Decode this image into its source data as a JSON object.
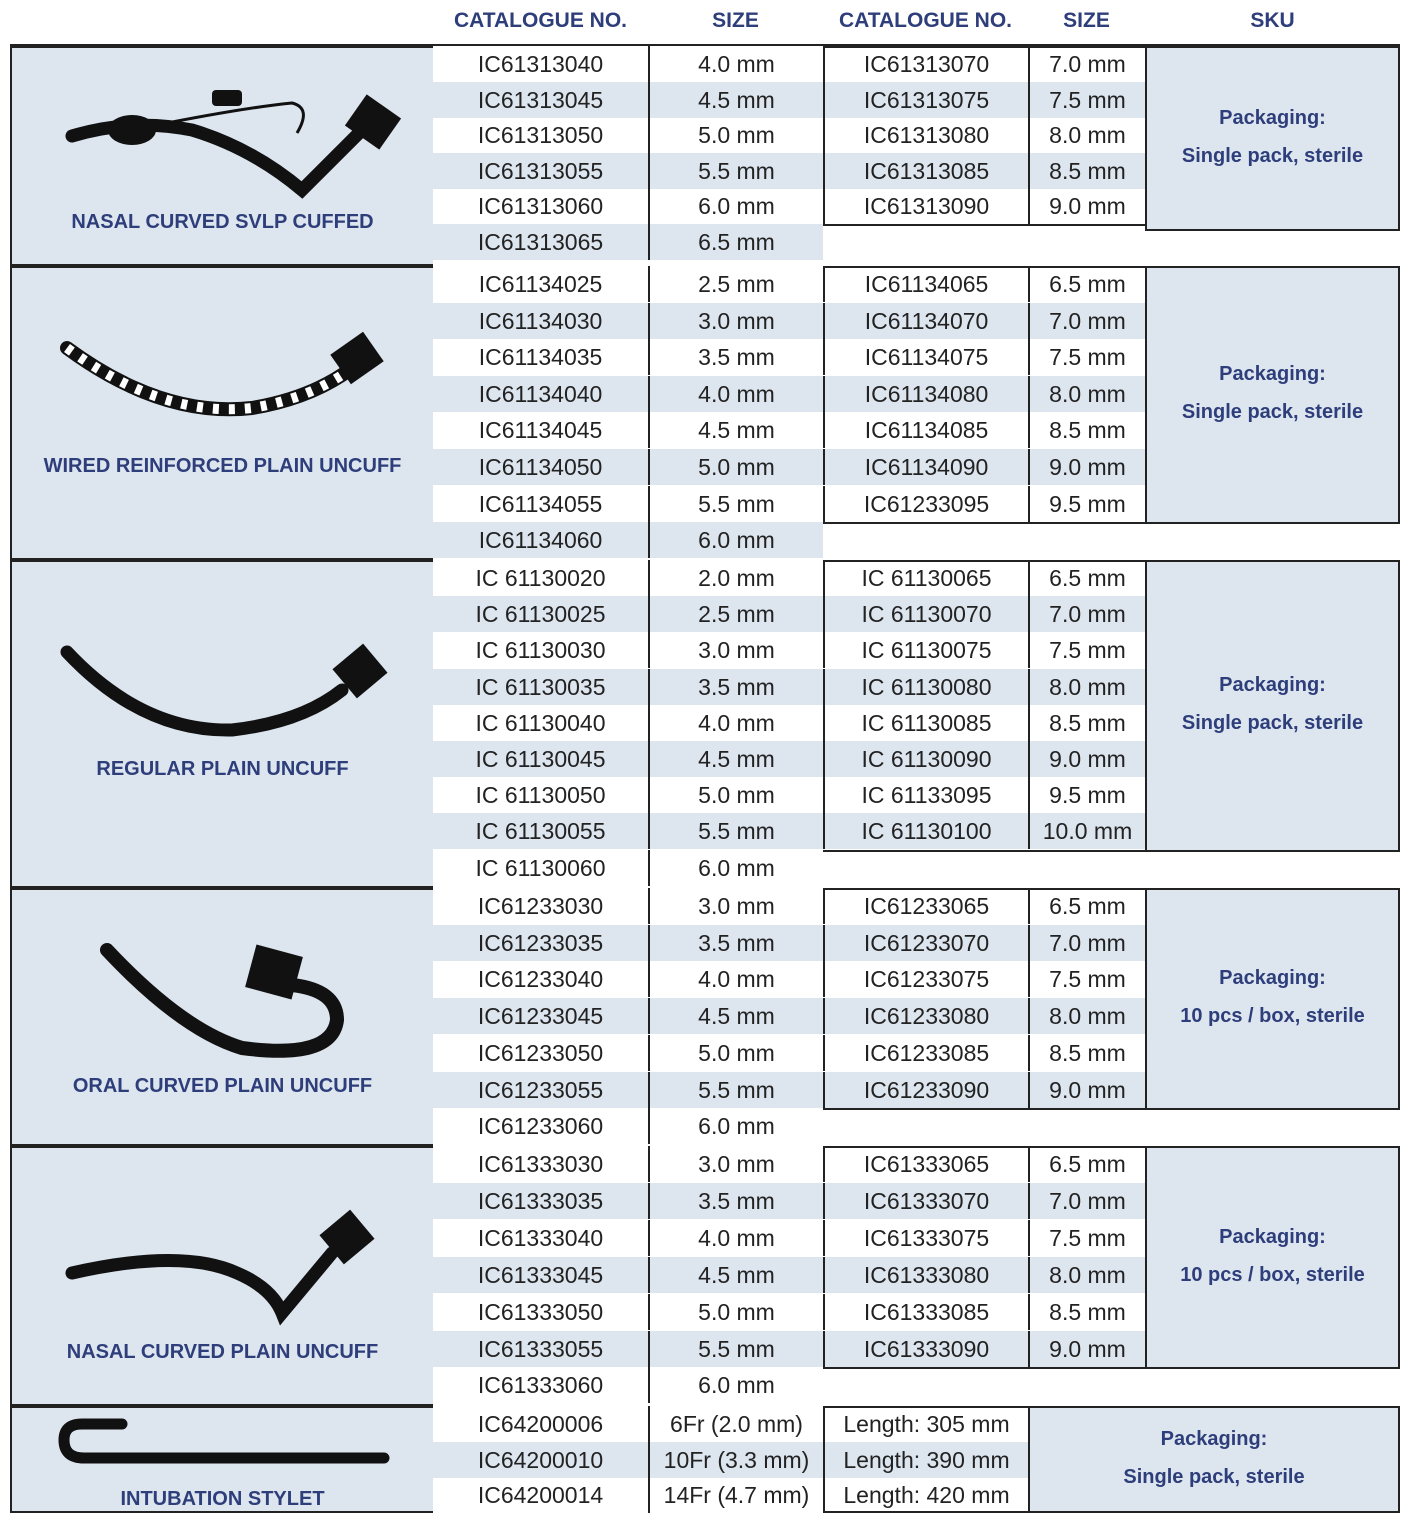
{
  "headers": {
    "catalogue_no_1": "CATALOGUE NO.",
    "size_1": "SIZE",
    "catalogue_no_2": "CATALOGUE NO.",
    "size_2": "SIZE",
    "sku": "SKU"
  },
  "sections": [
    {
      "name": "NASAL CURVED SVLP CUFFED",
      "icon": "nasal-cuffed-tube-icon",
      "left_rows": [
        [
          "IC61313040",
          "4.0 mm"
        ],
        [
          "IC61313045",
          "4.5 mm"
        ],
        [
          "IC61313050",
          "5.0 mm"
        ],
        [
          "IC61313055",
          "5.5 mm"
        ],
        [
          "IC61313060",
          "6.0 mm"
        ],
        [
          "IC61313065",
          "6.5 mm"
        ]
      ],
      "right_rows": [
        [
          "IC61313070",
          "7.0 mm"
        ],
        [
          "IC61313075",
          "7.5 mm"
        ],
        [
          "IC61313080",
          "8.0 mm"
        ],
        [
          "IC61313085",
          "8.5 mm"
        ],
        [
          "IC61313090",
          "9.0 mm"
        ]
      ],
      "packaging_label": "Packaging:",
      "packaging_value": "Single pack, sterile"
    },
    {
      "name": "WIRED REINFORCED PLAIN UNCUFF",
      "icon": "wired-tube-icon",
      "left_rows": [
        [
          "IC61134025",
          "2.5 mm"
        ],
        [
          "IC61134030",
          "3.0 mm"
        ],
        [
          "IC61134035",
          "3.5 mm"
        ],
        [
          "IC61134040",
          "4.0 mm"
        ],
        [
          "IC61134045",
          "4.5 mm"
        ],
        [
          "IC61134050",
          "5.0 mm"
        ],
        [
          "IC61134055",
          "5.5 mm"
        ],
        [
          "IC61134060",
          "6.0 mm"
        ]
      ],
      "right_rows": [
        [
          "IC61134065",
          "6.5 mm"
        ],
        [
          "IC61134070",
          "7.0 mm"
        ],
        [
          "IC61134075",
          "7.5 mm"
        ],
        [
          "IC61134080",
          "8.0 mm"
        ],
        [
          "IC61134085",
          "8.5 mm"
        ],
        [
          "IC61134090",
          "9.0 mm"
        ],
        [
          "IC61233095",
          "9.5 mm"
        ]
      ],
      "packaging_label": "Packaging:",
      "packaging_value": "Single pack, sterile"
    },
    {
      "name": "REGULAR PLAIN UNCUFF",
      "icon": "regular-tube-icon",
      "left_rows": [
        [
          "IC 61130020",
          "2.0 mm"
        ],
        [
          "IC 61130025",
          "2.5 mm"
        ],
        [
          "IC 61130030",
          "3.0 mm"
        ],
        [
          "IC 61130035",
          "3.5 mm"
        ],
        [
          "IC 61130040",
          "4.0 mm"
        ],
        [
          "IC 61130045",
          "4.5 mm"
        ],
        [
          "IC 61130050",
          "5.0 mm"
        ],
        [
          "IC 61130055",
          "5.5 mm"
        ],
        [
          "IC 61130060",
          "6.0 mm"
        ]
      ],
      "right_rows": [
        [
          "IC 61130065",
          "6.5 mm"
        ],
        [
          "IC 61130070",
          "7.0 mm"
        ],
        [
          "IC 61130075",
          "7.5 mm"
        ],
        [
          "IC 61130080",
          "8.0 mm"
        ],
        [
          "IC 61130085",
          "8.5 mm"
        ],
        [
          "IC 61130090",
          "9.0 mm"
        ],
        [
          "IC 61133095",
          "9.5 mm"
        ],
        [
          "IC 61130100",
          "10.0 mm"
        ]
      ],
      "packaging_label": "Packaging:",
      "packaging_value": "Single pack, sterile"
    },
    {
      "name": "ORAL CURVED PLAIN UNCUFF",
      "icon": "oral-tube-icon",
      "left_rows": [
        [
          "IC61233030",
          "3.0 mm"
        ],
        [
          "IC61233035",
          "3.5 mm"
        ],
        [
          "IC61233040",
          "4.0 mm"
        ],
        [
          "IC61233045",
          "4.5 mm"
        ],
        [
          "IC61233050",
          "5.0 mm"
        ],
        [
          "IC61233055",
          "5.5 mm"
        ],
        [
          "IC61233060",
          "6.0 mm"
        ]
      ],
      "right_rows": [
        [
          "IC61233065",
          "6.5 mm"
        ],
        [
          "IC61233070",
          "7.0 mm"
        ],
        [
          "IC61233075",
          "7.5 mm"
        ],
        [
          "IC61233080",
          "8.0 mm"
        ],
        [
          "IC61233085",
          "8.5 mm"
        ],
        [
          "IC61233090",
          "9.0 mm"
        ]
      ],
      "packaging_label": "Packaging:",
      "packaging_value": "10 pcs / box, sterile"
    },
    {
      "name": "NASAL CURVED PLAIN UNCUFF",
      "icon": "nasal-tube-icon",
      "left_rows": [
        [
          "IC61333030",
          "3.0 mm"
        ],
        [
          "IC61333035",
          "3.5 mm"
        ],
        [
          "IC61333040",
          "4.0 mm"
        ],
        [
          "IC61333045",
          "4.5 mm"
        ],
        [
          "IC61333050",
          "5.0 mm"
        ],
        [
          "IC61333055",
          "5.5 mm"
        ],
        [
          "IC61333060",
          "6.0 mm"
        ]
      ],
      "right_rows": [
        [
          "IC61333065",
          "6.5 mm"
        ],
        [
          "IC61333070",
          "7.0 mm"
        ],
        [
          "IC61333075",
          "7.5 mm"
        ],
        [
          "IC61333080",
          "8.0 mm"
        ],
        [
          "IC61333085",
          "8.5 mm"
        ],
        [
          "IC61333090",
          "9.0 mm"
        ]
      ],
      "packaging_label": "Packaging:",
      "packaging_value": "10 pcs / box, sterile"
    },
    {
      "name": "INTUBATION STYLET",
      "icon": "stylet-icon",
      "left_rows": [
        [
          "IC64200006",
          "6Fr (2.0 mm)"
        ],
        [
          "IC64200010",
          "10Fr (3.3 mm)"
        ],
        [
          "IC64200014",
          "14Fr (4.7 mm)"
        ]
      ],
      "right_rows": [
        [
          "Length: 305 mm"
        ],
        [
          "Length: 390 mm"
        ],
        [
          "Length: 420 mm"
        ]
      ],
      "packaging_label": "Packaging:",
      "packaging_value": "Single pack, sterile"
    }
  ]
}
